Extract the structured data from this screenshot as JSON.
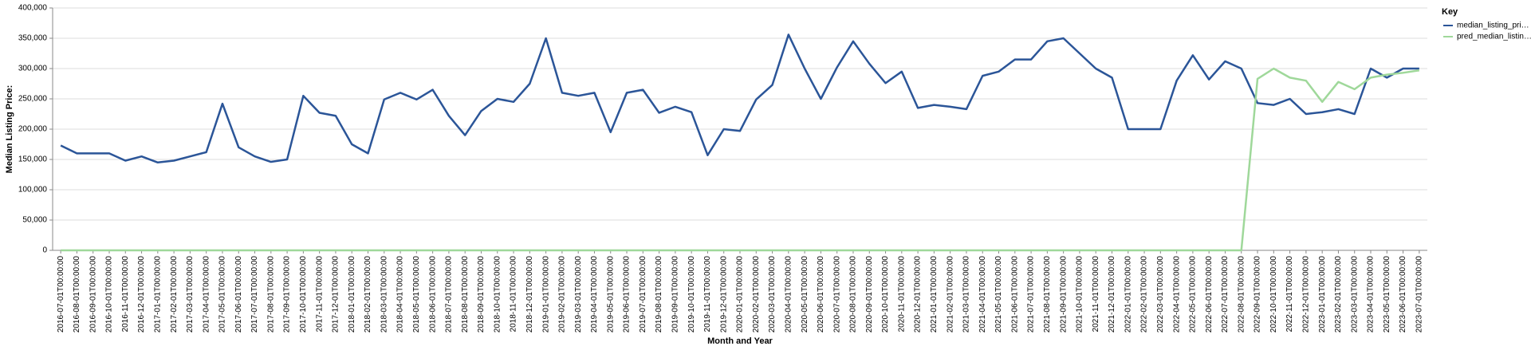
{
  "chart_data": {
    "type": "line",
    "x_label": "Month and Year",
    "y_label": "Median Listing Price:",
    "legend_title": "Key",
    "legend": "right",
    "grid": true,
    "categories": [
      "2016-07-01T00:00:00",
      "2016-08-01T00:00:00",
      "2016-09-01T00:00:00",
      "2016-10-01T00:00:00",
      "2016-11-01T00:00:00",
      "2016-12-01T00:00:00",
      "2017-01-01T00:00:00",
      "2017-02-01T00:00:00",
      "2017-03-01T00:00:00",
      "2017-04-01T00:00:00",
      "2017-05-01T00:00:00",
      "2017-06-01T00:00:00",
      "2017-07-01T00:00:00",
      "2017-08-01T00:00:00",
      "2017-09-01T00:00:00",
      "2017-10-01T00:00:00",
      "2017-11-01T00:00:00",
      "2017-12-01T00:00:00",
      "2018-01-01T00:00:00",
      "2018-02-01T00:00:00",
      "2018-03-01T00:00:00",
      "2018-04-01T00:00:00",
      "2018-05-01T00:00:00",
      "2018-06-01T00:00:00",
      "2018-07-01T00:00:00",
      "2018-08-01T00:00:00",
      "2018-09-01T00:00:00",
      "2018-10-01T00:00:00",
      "2018-11-01T00:00:00",
      "2018-12-01T00:00:00",
      "2019-01-01T00:00:00",
      "2019-02-01T00:00:00",
      "2019-03-01T00:00:00",
      "2019-04-01T00:00:00",
      "2019-05-01T00:00:00",
      "2019-06-01T00:00:00",
      "2019-07-01T00:00:00",
      "2019-08-01T00:00:00",
      "2019-09-01T00:00:00",
      "2019-10-01T00:00:00",
      "2019-11-01T00:00:00",
      "2019-12-01T00:00:00",
      "2020-01-01T00:00:00",
      "2020-02-01T00:00:00",
      "2020-03-01T00:00:00",
      "2020-04-01T00:00:00",
      "2020-05-01T00:00:00",
      "2020-06-01T00:00:00",
      "2020-07-01T00:00:00",
      "2020-08-01T00:00:00",
      "2020-09-01T00:00:00",
      "2020-10-01T00:00:00",
      "2020-11-01T00:00:00",
      "2020-12-01T00:00:00",
      "2021-01-01T00:00:00",
      "2021-02-01T00:00:00",
      "2021-03-01T00:00:00",
      "2021-04-01T00:00:00",
      "2021-05-01T00:00:00",
      "2021-06-01T00:00:00",
      "2021-07-01T00:00:00",
      "2021-08-01T00:00:00",
      "2021-09-01T00:00:00",
      "2021-10-01T00:00:00",
      "2021-11-01T00:00:00",
      "2021-12-01T00:00:00",
      "2022-01-01T00:00:00",
      "2022-02-01T00:00:00",
      "2022-03-01T00:00:00",
      "2022-04-01T00:00:00",
      "2022-05-01T00:00:00",
      "2022-06-01T00:00:00",
      "2022-07-01T00:00:00",
      "2022-08-01T00:00:00",
      "2022-09-01T00:00:00",
      "2022-10-01T00:00:00",
      "2022-11-01T00:00:00",
      "2022-12-01T00:00:00",
      "2023-01-01T00:00:00",
      "2023-02-01T00:00:00",
      "2023-03-01T00:00:00",
      "2023-04-01T00:00:00",
      "2023-05-01T00:00:00",
      "2023-06-01T00:00:00",
      "2023-07-01T00:00:00"
    ],
    "series": [
      {
        "name": "median_listing_pri…",
        "color": "#2b5598",
        "values": [
          173000,
          160000,
          160000,
          160000,
          148000,
          155000,
          145000,
          148000,
          155000,
          162000,
          242000,
          170000,
          155000,
          146000,
          150000,
          255000,
          227000,
          222000,
          175000,
          160000,
          249000,
          260000,
          249000,
          265000,
          222000,
          190000,
          230000,
          250000,
          245000,
          275000,
          350000,
          260000,
          255000,
          260000,
          195000,
          260000,
          265000,
          227000,
          237000,
          228000,
          157000,
          200000,
          197000,
          249000,
          273000,
          356000,
          300000,
          250000,
          302000,
          345000,
          308000,
          276000,
          295000,
          235000,
          240000,
          237000,
          233000,
          288000,
          295000,
          315000,
          315000,
          345000,
          350000,
          325000,
          300000,
          285000,
          200000,
          200000,
          200000,
          280000,
          322000,
          282000,
          312000,
          300000,
          243000,
          240000,
          250000,
          225000,
          228000,
          233000,
          225000,
          300000,
          285000,
          300000,
          300000
        ]
      },
      {
        "name": "pred_median_listin…",
        "color": "#9fd89a",
        "values": [
          0,
          0,
          0,
          0,
          0,
          0,
          0,
          0,
          0,
          0,
          0,
          0,
          0,
          0,
          0,
          0,
          0,
          0,
          0,
          0,
          0,
          0,
          0,
          0,
          0,
          0,
          0,
          0,
          0,
          0,
          0,
          0,
          0,
          0,
          0,
          0,
          0,
          0,
          0,
          0,
          0,
          0,
          0,
          0,
          0,
          0,
          0,
          0,
          0,
          0,
          0,
          0,
          0,
          0,
          0,
          0,
          0,
          0,
          0,
          0,
          0,
          0,
          0,
          0,
          0,
          0,
          0,
          0,
          0,
          0,
          0,
          0,
          0,
          0,
          283000,
          300000,
          285000,
          280000,
          245000,
          278000,
          266000,
          285000,
          290000,
          293000,
          297000
        ]
      }
    ],
    "ylim": [
      0,
      400000
    ],
    "yticks": [
      0,
      {
        "value": 50000,
        "label": "50,000"
      },
      {
        "value": 100000,
        "label": "100,000"
      },
      {
        "value": 150000,
        "label": "150,000"
      },
      {
        "value": 200000,
        "label": "200,000"
      },
      {
        "value": 250000,
        "label": "250,000"
      },
      {
        "value": 300000,
        "label": "300,000"
      },
      {
        "value": 350000,
        "label": "350,000"
      },
      {
        "value": 400000,
        "label": "400,000"
      }
    ]
  }
}
